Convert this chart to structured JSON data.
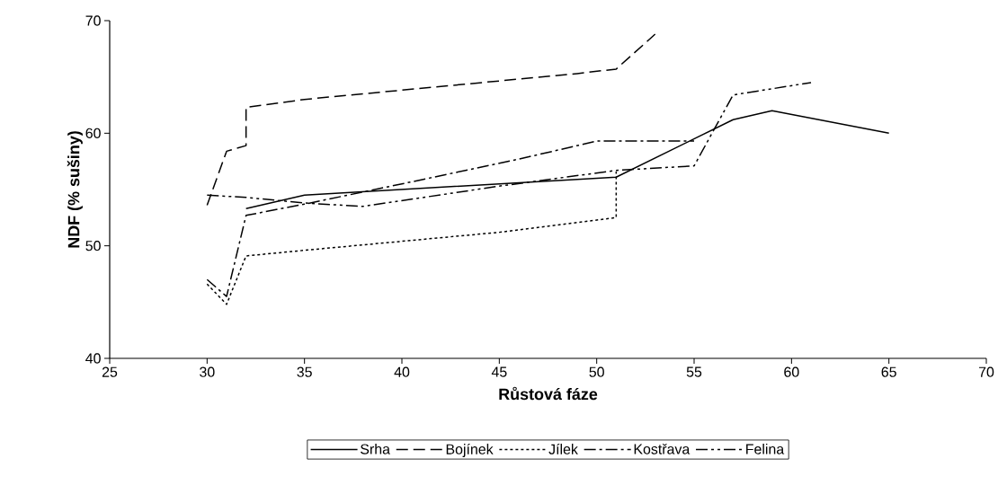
{
  "chart_data": {
    "type": "line",
    "xlabel": "Růstová fáze",
    "ylabel": "NDF (% sušiny)",
    "xlim": [
      25,
      70
    ],
    "xticks": [
      25,
      30,
      35,
      40,
      45,
      50,
      55,
      60,
      65,
      70
    ],
    "ylim": [
      40,
      70
    ],
    "yticks": [
      40,
      50,
      60,
      70
    ],
    "legend": "bottom",
    "series": [
      {
        "name": "Srha",
        "color": "#000000",
        "line_style": "solid",
        "x": [
          32,
          35,
          51,
          57,
          59,
          65
        ],
        "values": [
          53.3,
          54.5,
          56.1,
          61.2,
          62.0,
          60.0
        ]
      },
      {
        "name": "Bojínek",
        "color": "#000000",
        "line_style": "dashed",
        "x": [
          30,
          31,
          32,
          32,
          35,
          38,
          49,
          51,
          53
        ],
        "values": [
          53.6,
          58.4,
          58.9,
          62.3,
          63.0,
          63.5,
          65.3,
          65.7,
          68.8
        ]
      },
      {
        "name": "Jílek",
        "color": "#000000",
        "line_style": "dotted",
        "x": [
          30,
          31,
          32,
          35,
          45,
          51,
          51
        ],
        "values": [
          46.6,
          44.8,
          49.1,
          49.6,
          51.2,
          52.5,
          56.6
        ]
      },
      {
        "name": "Kostřava",
        "color": "#000000",
        "line_style": "dashdot",
        "x": [
          30,
          31,
          32,
          35,
          40,
          46,
          50,
          55
        ],
        "values": [
          47.0,
          45.5,
          52.7,
          53.7,
          55.5,
          57.7,
          59.3,
          59.3
        ]
      },
      {
        "name": "Felina",
        "color": "#000000",
        "line_style": "dashdotdot",
        "x": [
          30,
          32,
          35,
          38,
          45,
          51,
          55,
          57,
          61
        ],
        "values": [
          54.5,
          54.3,
          53.8,
          53.5,
          55.3,
          56.7,
          57.1,
          63.4,
          64.5
        ]
      }
    ]
  }
}
